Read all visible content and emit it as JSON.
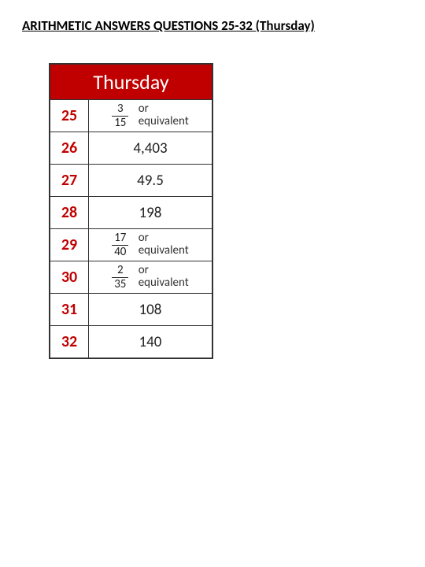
{
  "title": "ARITHMETIC ANSWERS QUESTIONS 25-32 (Thursday)",
  "header_label": "Thursday",
  "header_bg": "#c00000",
  "header_color": "#ffffff",
  "number_color": "#c00000",
  "border_color": "#333333",
  "rows": [
    {
      "num": "25",
      "type": "fraction",
      "frac_num": "3",
      "frac_den": "15",
      "suffix_l1": "or",
      "suffix_l2": "equivalent"
    },
    {
      "num": "26",
      "type": "plain",
      "value": "4,403"
    },
    {
      "num": "27",
      "type": "plain",
      "value": "49.5"
    },
    {
      "num": "28",
      "type": "plain",
      "value": "198"
    },
    {
      "num": "29",
      "type": "fraction",
      "frac_num": "17",
      "frac_den": "40",
      "suffix_l1": "or",
      "suffix_l2": "equivalent"
    },
    {
      "num": "30",
      "type": "fraction",
      "frac_num": "2",
      "frac_den": "35",
      "suffix_l1": "or",
      "suffix_l2": "equivalent"
    },
    {
      "num": "31",
      "type": "plain",
      "value": "108"
    },
    {
      "num": "32",
      "type": "plain",
      "value": "140"
    }
  ]
}
